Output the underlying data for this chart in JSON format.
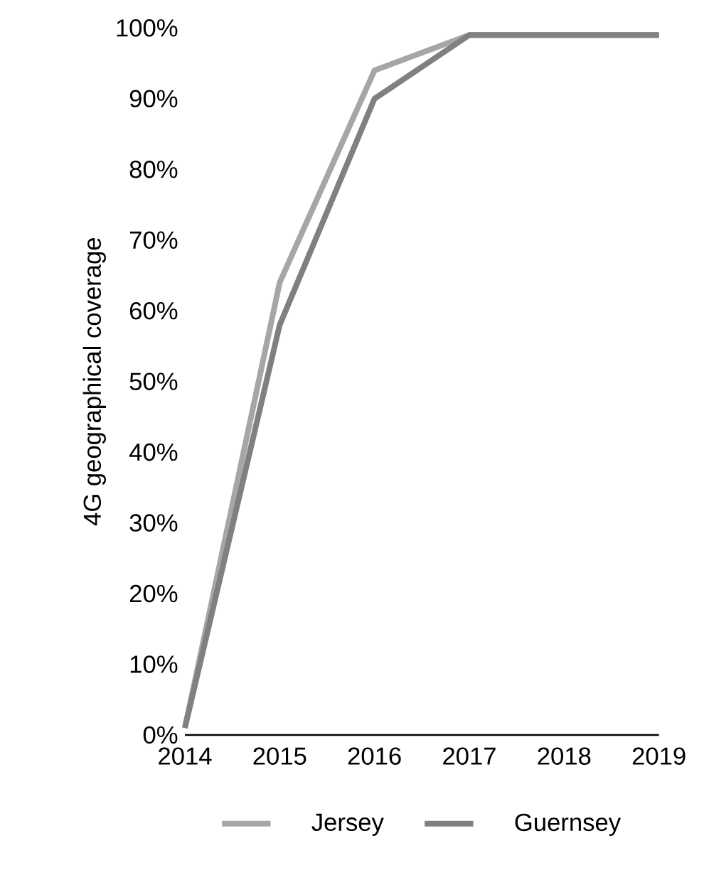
{
  "chart_data": {
    "type": "line",
    "ylabel": "4G geographical  coverage",
    "categories": [
      "2014",
      "2015",
      "2016",
      "2017",
      "2018",
      "2019"
    ],
    "series": [
      {
        "name": "Jersey",
        "color": "#a6a6a6",
        "values": [
          1,
          64,
          94,
          99,
          99,
          99
        ]
      },
      {
        "name": "Guernsey",
        "color": "#808080",
        "values": [
          1,
          58,
          90,
          99,
          99,
          99
        ]
      }
    ],
    "ylim": [
      0,
      100
    ],
    "yticks": [
      {
        "value": 0,
        "label": "0%"
      },
      {
        "value": 10,
        "label": "10%"
      },
      {
        "value": 20,
        "label": "20%"
      },
      {
        "value": 30,
        "label": "30%"
      },
      {
        "value": 40,
        "label": "40%"
      },
      {
        "value": 50,
        "label": "50%"
      },
      {
        "value": 60,
        "label": "60%"
      },
      {
        "value": 70,
        "label": "70%"
      },
      {
        "value": 80,
        "label": "80%"
      },
      {
        "value": 90,
        "label": "90%"
      },
      {
        "value": 100,
        "label": "100%"
      }
    ],
    "grid": false,
    "legend": "bottom",
    "marker": "none",
    "line_style": "solid"
  }
}
